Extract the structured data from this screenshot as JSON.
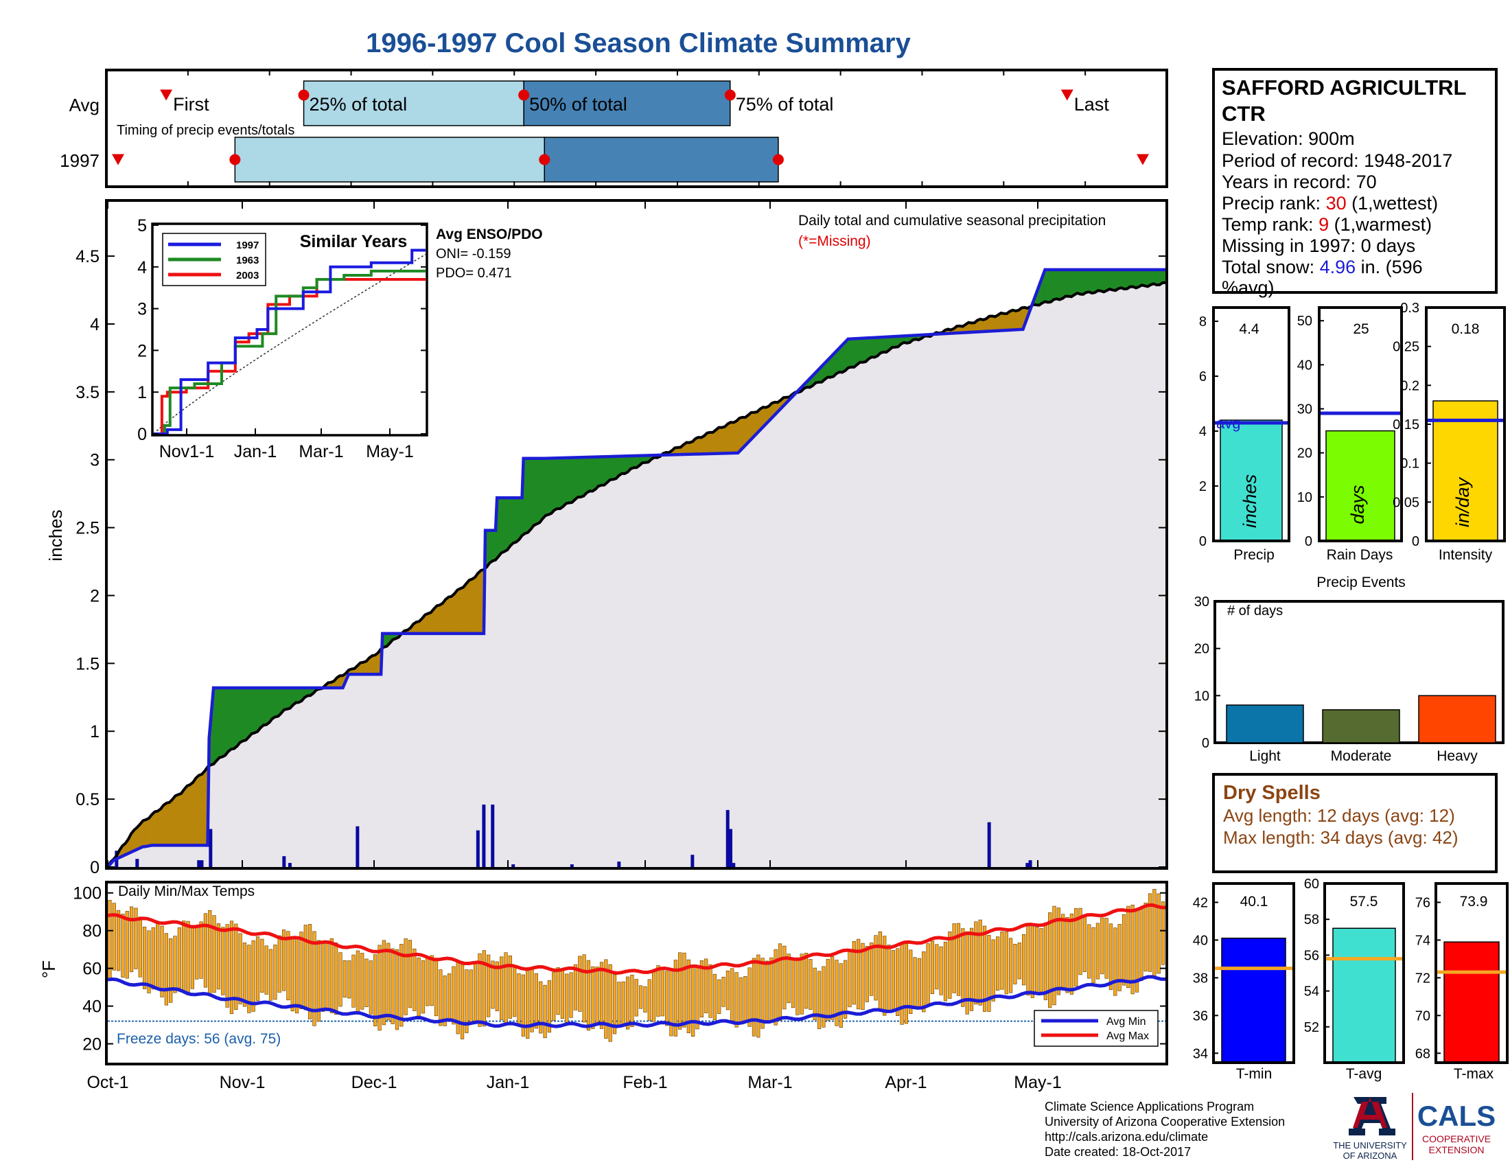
{
  "title": "1996-1997 Cool Season Climate Summary",
  "colors": {
    "title": "#1a4f96",
    "light_blue": "#add8e6",
    "steel_blue": "#4682b4",
    "red_marker": "#e00000",
    "obs_line": "#1c1cd6",
    "green_fill": "#1f8a24",
    "brown_fill": "#b8860b",
    "gray_fill": "#e8e6ea",
    "temp_bar": "#f5a623",
    "precip_bar": "#40e0d0",
    "raindays_bar": "#7cfc00",
    "intensity_bar": "#ffd700",
    "light_bar": "#0b74a8",
    "moderate_bar": "#556b2f",
    "heavy_bar": "#ff4500",
    "tmin_bar": "#0000ff",
    "tavg_bar": "#40e0d0",
    "tmax_bar": "#ff0000",
    "dry_text": "#8b4513"
  },
  "timing": {
    "row_avg": "Avg",
    "row_year": "1997",
    "first_label": "First",
    "p25_label": "25% of total",
    "p50_label": "50% of total",
    "p75_label": "75% of total",
    "last_label": "Last",
    "subtitle": "Timing of precip events/totals",
    "avg_days": {
      "first": 7,
      "p25": 27,
      "p50": 59,
      "p75": 89,
      "last": 138
    },
    "year_days": {
      "first": 0,
      "p25": 17,
      "p50": 62,
      "p75": 96,
      "last": 149
    }
  },
  "station": {
    "name_line1": "SAFFORD AGRICULTRL",
    "name_line2": "CTR",
    "elevation": "Elevation: 900m",
    "period": "Period of record: 1948-2017",
    "years": "Years in record: 70",
    "precip_rank_pre": "Precip rank: ",
    "precip_rank_val": "30",
    "precip_rank_post": " (1,wettest)",
    "temp_rank_pre": "Temp rank: ",
    "temp_rank_val": "9",
    "temp_rank_post": " (1,warmest)",
    "missing": "Missing in 1997: 0 days",
    "snow_pre": "Total snow: ",
    "snow_val": "4.96",
    "snow_post": " in. (596",
    "snow_line2": "%avg)"
  },
  "main_chart": {
    "ylabel": "inches",
    "note1": "Daily total and cumulative seasonal precipitation",
    "note2": "(*=Missing)",
    "enso_title": "Avg ENSO/PDO",
    "oni": "ONI= -0.159",
    "pdo": "PDO= 0.471"
  },
  "inset": {
    "title": "Similar Years",
    "legend": [
      "1997",
      "1963",
      "2003"
    ],
    "x_ticks": [
      "Nov1-1",
      "Jan-1",
      "Mar-1",
      "May-1"
    ]
  },
  "temp_chart": {
    "title": "Daily Min/Max Temps",
    "ylabel": "°F",
    "freeze": "Freeze days: 56 (avg. 75)",
    "legend_min": "Avg Min",
    "legend_max": "Avg Max"
  },
  "x_month_labels": [
    "Oct-1",
    "Nov-1",
    "Dec-1",
    "Jan-1",
    "Feb-1",
    "Mar-1",
    "Apr-1",
    "May-1"
  ],
  "summary_bars": {
    "precip": {
      "value": "4.4",
      "label": "Precip",
      "unit": "inches",
      "avg_text": "avg"
    },
    "raindays": {
      "value": "25",
      "label": "Rain Days",
      "unit": "days"
    },
    "intensity": {
      "value": "0.18",
      "label": "Intensity",
      "unit": "in/day"
    }
  },
  "precip_events": {
    "title": "Precip Events",
    "unit": "# of days",
    "labels": [
      "Light",
      "Moderate",
      "Heavy"
    ]
  },
  "dry_spells": {
    "title": "Dry Spells",
    "avg": "Avg length: 12 days (avg: 12)",
    "max": "Max length: 34 days (avg: 42)"
  },
  "temp_summary": {
    "tmin": {
      "value": "40.1",
      "label": "T-min"
    },
    "tavg": {
      "value": "57.5",
      "label": "T-avg"
    },
    "tmax": {
      "value": "73.9",
      "label": "T-max"
    }
  },
  "footer": {
    "line1": "Climate Science Applications Program",
    "line2": "University of Arizona Cooperative Extension",
    "line3": "http://cals.arizona.edu/climate",
    "line4": " Date created: 18-Oct-2017",
    "ua_line1": "THE UNIVERSITY",
    "ua_line2": "OF ARIZONA",
    "cals": "CALS",
    "cals_sub1": "COOPERATIVE",
    "cals_sub2": "EXTENSION"
  },
  "chart_data": [
    {
      "type": "line",
      "title": "Daily total and cumulative seasonal precipitation",
      "ylabel": "inches",
      "ylim": [
        0,
        4.9
      ],
      "y_ticks": [
        0,
        0.5,
        1,
        1.5,
        2,
        2.5,
        3,
        3.5,
        4,
        4.5
      ],
      "x_ticks": [
        "Oct-1",
        "Nov-1",
        "Dec-1",
        "Jan-1",
        "Feb-1",
        "Mar-1",
        "Apr-1",
        "May-1"
      ],
      "season_days": 243,
      "series": [
        {
          "name": "1997",
          "x": [
            0,
            2,
            12,
            12.5,
            15,
            34,
            34.5,
            36,
            80,
            82,
            82.5,
            93,
            93.5,
            128,
            128.5,
            132,
            132.5,
            141,
            141.5,
            148,
            148.5,
            214,
            214.5,
            252,
            252.5,
            311,
            311.5,
            319,
            319.5,
            329,
            329.5,
            360
          ],
          "y": [
            0,
            0.05,
            0.15,
            0.15,
            0.16,
            0.16,
            0.95,
            1.32,
            1.32,
            1.42,
            1.42,
            1.42,
            1.72,
            1.72,
            2.48,
            2.48,
            2.72,
            2.72,
            3.01,
            3.01,
            3.01,
            3.05,
            3.05,
            3.89,
            3.89,
            3.96,
            3.96,
            4.4,
            4.4,
            4.4,
            4.4,
            4.4
          ]
        },
        {
          "name": "Average",
          "x": [
            0,
            10,
            25,
            35,
            60,
            90,
            120,
            150,
            180,
            210,
            240,
            270,
            300,
            330,
            360
          ],
          "y": [
            0,
            0.3,
            0.55,
            0.75,
            1.15,
            1.55,
            2.05,
            2.6,
            2.95,
            3.25,
            3.55,
            3.85,
            4.05,
            4.22,
            4.3
          ]
        }
      ],
      "daily_bars": {
        "x": [
          3,
          10,
          31,
          32,
          35,
          60,
          62,
          85,
          126,
          128,
          131,
          138,
          158,
          174,
          199,
          211,
          212,
          213,
          300,
          313,
          314
        ],
        "y": [
          0.12,
          0.06,
          0.05,
          0.05,
          0.28,
          0.08,
          0.03,
          0.3,
          0.27,
          0.46,
          0.46,
          0.02,
          0.02,
          0.04,
          0.09,
          0.42,
          0.28,
          0.03,
          0.33,
          0.03,
          0.05
        ]
      }
    },
    {
      "type": "line",
      "title": "Similar Years",
      "ylim": [
        0,
        5
      ],
      "y_ticks": [
        0,
        1,
        2,
        3,
        4,
        5
      ],
      "x_ticks": [
        "Nov1-1",
        "Jan-1",
        "Mar-1",
        "May-1"
      ],
      "series": [
        {
          "name": "1997",
          "x": [
            0,
            0.05,
            0.1,
            0.18,
            0.2,
            0.28,
            0.3,
            0.38,
            0.42,
            0.5,
            0.55,
            0.6,
            0.65,
            0.75,
            0.8,
            0.9,
            0.95,
            1.0
          ],
          "y": [
            0,
            0.1,
            1.3,
            1.3,
            1.7,
            1.7,
            2.3,
            2.5,
            3.0,
            3.0,
            3.4,
            3.4,
            4.0,
            4.0,
            4.1,
            4.1,
            4.4,
            4.4
          ]
        },
        {
          "name": "1963",
          "x": [
            0,
            0.04,
            0.06,
            0.15,
            0.25,
            0.3,
            0.4,
            0.45,
            0.55,
            0.6,
            0.7,
            0.8,
            0.9,
            1.0
          ],
          "y": [
            0,
            0.2,
            1.1,
            1.2,
            1.7,
            2.1,
            2.4,
            3.3,
            3.5,
            3.7,
            3.8,
            3.9,
            3.9,
            3.9
          ]
        },
        {
          "name": "2003",
          "x": [
            0,
            0.03,
            0.05,
            0.12,
            0.2,
            0.3,
            0.35,
            0.42,
            0.5,
            0.6,
            0.7,
            0.8,
            0.9,
            1.0
          ],
          "y": [
            0,
            0.9,
            1.0,
            1.1,
            1.5,
            2.2,
            2.4,
            3.1,
            3.3,
            3.7,
            3.7,
            3.7,
            3.7,
            3.7
          ]
        }
      ]
    },
    {
      "type": "bar",
      "title": "Daily Min/Max Temps",
      "ylabel": "°F",
      "ylim": [
        10,
        105
      ],
      "y_ticks": [
        20,
        40,
        60,
        80,
        100
      ],
      "freeze_line": 32,
      "avg_min": {
        "x": [
          0,
          30,
          60,
          90,
          120,
          150,
          180,
          210,
          240
        ],
        "y": [
          54,
          43,
          35,
          30,
          30,
          32,
          38,
          46,
          55
        ]
      },
      "avg_max": {
        "x": [
          0,
          30,
          60,
          90,
          120,
          150,
          180,
          210,
          240
        ],
        "y": [
          88,
          80,
          70,
          61,
          58,
          63,
          72,
          82,
          93
        ]
      }
    },
    {
      "type": "bar",
      "title": "Precip / Rain Days / Intensity",
      "categories": [
        "Precip",
        "Rain Days",
        "Intensity"
      ],
      "values": [
        4.4,
        25,
        0.18
      ],
      "averages": [
        4.3,
        29,
        0.155
      ],
      "ylims": [
        [
          0,
          8.5
        ],
        [
          0,
          53
        ],
        [
          0,
          0.3
        ]
      ]
    },
    {
      "type": "bar",
      "title": "Precip Events",
      "categories": [
        "Light",
        "Moderate",
        "Heavy"
      ],
      "values": [
        8,
        7,
        10
      ],
      "ylim": [
        0,
        30
      ]
    },
    {
      "type": "bar",
      "title": "Temperature summary",
      "categories": [
        "T-min",
        "T-avg",
        "T-max"
      ],
      "values": [
        40.1,
        57.5,
        73.9
      ],
      "averages": [
        38.5,
        55.8,
        72.3
      ],
      "ylims": [
        [
          33.5,
          43
        ],
        [
          50,
          60
        ],
        [
          67.5,
          77
        ]
      ]
    }
  ]
}
